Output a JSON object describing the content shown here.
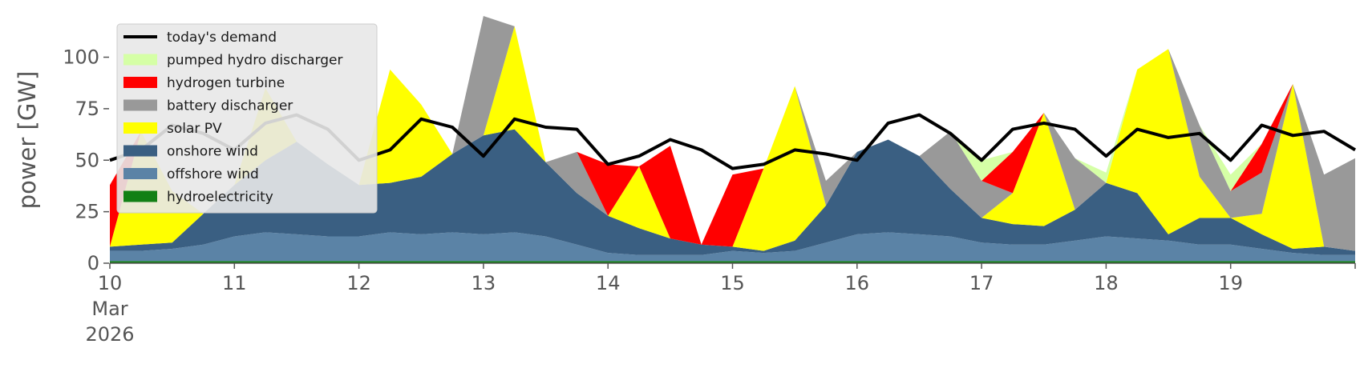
{
  "chart_data": {
    "type": "area",
    "stacked": true,
    "ylabel": "power [GW]",
    "ylim": [
      0,
      120
    ],
    "xlim": [
      0,
      10
    ],
    "yticks": [
      0,
      25,
      50,
      75,
      100
    ],
    "x_tick_labels": [
      {
        "x": 0,
        "label": "10",
        "sub": [
          "Mar",
          "2026"
        ]
      },
      {
        "x": 1,
        "label": "11"
      },
      {
        "x": 2,
        "label": "12"
      },
      {
        "x": 3,
        "label": "13"
      },
      {
        "x": 4,
        "label": "14"
      },
      {
        "x": 5,
        "label": "15"
      },
      {
        "x": 6,
        "label": "16"
      },
      {
        "x": 7,
        "label": "17"
      },
      {
        "x": 8,
        "label": "18"
      },
      {
        "x": 9,
        "label": "19"
      }
    ],
    "legend_position": "top-left",
    "x": [
      0,
      0.25,
      0.5,
      0.75,
      1,
      1.25,
      1.5,
      1.75,
      2,
      2.25,
      2.5,
      2.75,
      3,
      3.25,
      3.5,
      3.75,
      4,
      4.25,
      4.5,
      4.75,
      5,
      5.25,
      5.5,
      5.75,
      6,
      6.25,
      6.5,
      6.75,
      7,
      7.25,
      7.5,
      7.75,
      8,
      8.25,
      8.5,
      8.75,
      9,
      9.25,
      9.5,
      9.75,
      10
    ],
    "series": [
      {
        "name": "hydroelectricity",
        "color": "#128015",
        "values": [
          1,
          1,
          1,
          1,
          1,
          1,
          1,
          1,
          1,
          1,
          1,
          1,
          1,
          1,
          1,
          1,
          1,
          1,
          1,
          1,
          1,
          1,
          1,
          1,
          1,
          1,
          1,
          1,
          1,
          1,
          1,
          1,
          1,
          1,
          1,
          1,
          1,
          1,
          1,
          1,
          1
        ]
      },
      {
        "name": "offshore wind",
        "color": "#5b83a6",
        "values": [
          5,
          5,
          6,
          8,
          12,
          14,
          13,
          12,
          12,
          14,
          13,
          14,
          13,
          14,
          12,
          8,
          4,
          3,
          3,
          3,
          5,
          4,
          5,
          9,
          13,
          14,
          13,
          12,
          9,
          8,
          8,
          10,
          12,
          11,
          10,
          8,
          8,
          6,
          4,
          3,
          3
        ]
      },
      {
        "name": "onshore wind",
        "color": "#3a5f82",
        "values": [
          2,
          3,
          3,
          15,
          25,
          35,
          45,
          35,
          25,
          24,
          28,
          38,
          48,
          50,
          36,
          25,
          18,
          13,
          8,
          5,
          2,
          1,
          5,
          18,
          40,
          45,
          38,
          23,
          12,
          10,
          9,
          15,
          26,
          22,
          3,
          13,
          13,
          7,
          2,
          4,
          2
        ]
      },
      {
        "name": "solar PV",
        "color": "#ffff00",
        "values": [
          0,
          55,
          25,
          0,
          0,
          35,
          0,
          0,
          0,
          55,
          35,
          0,
          0,
          50,
          0,
          0,
          0,
          30,
          0,
          0,
          0,
          40,
          75,
          0,
          0,
          0,
          0,
          0,
          0,
          15,
          55,
          0,
          0,
          60,
          90,
          20,
          0,
          10,
          80,
          0,
          0
        ]
      },
      {
        "name": "battery discharger",
        "color": "#999999",
        "values": [
          0,
          0,
          0,
          0,
          0,
          0,
          0,
          0,
          0,
          0,
          0,
          0,
          60,
          0,
          0,
          20,
          0,
          0,
          0,
          0,
          0,
          0,
          0,
          12,
          0,
          0,
          0,
          28,
          18,
          0,
          0,
          25,
          0,
          0,
          0,
          25,
          13,
          20,
          0,
          35,
          45
        ]
      },
      {
        "name": "hydrogen turbine",
        "color": "#ff0000",
        "values": [
          30,
          0,
          0,
          0,
          0,
          0,
          0,
          0,
          0,
          0,
          0,
          0,
          0,
          0,
          0,
          0,
          25,
          0,
          45,
          0,
          35,
          0,
          0,
          0,
          0,
          0,
          0,
          0,
          0,
          20,
          0,
          0,
          0,
          0,
          0,
          0,
          0,
          14,
          0,
          0,
          0
        ]
      },
      {
        "name": "pumped hydro discharger",
        "color": "#d5ffa6",
        "values": [
          0,
          0,
          0,
          0,
          0,
          0,
          0,
          0,
          0,
          0,
          0,
          0,
          10,
          0,
          0,
          0,
          0,
          0,
          0,
          0,
          0,
          0,
          0,
          0,
          0,
          0,
          0,
          0,
          10,
          0,
          0,
          0,
          5,
          0,
          0,
          0,
          8,
          0,
          0,
          0,
          0
        ]
      },
      {
        "name": "today's demand",
        "color": "#000000",
        "kind": "line",
        "values": [
          50,
          55,
          67,
          63,
          55,
          68,
          72,
          65,
          50,
          55,
          70,
          66,
          52,
          70,
          66,
          65,
          48,
          52,
          60,
          55,
          46,
          48,
          55,
          53,
          50,
          68,
          72,
          63,
          50,
          65,
          68,
          65,
          52,
          65,
          61,
          63,
          50,
          67,
          62,
          64,
          55
        ]
      }
    ],
    "legend_order": [
      "today's demand",
      "pumped hydro discharger",
      "hydrogen turbine",
      "battery discharger",
      "solar PV",
      "onshore wind",
      "offshore wind",
      "hydroelectricity"
    ]
  }
}
